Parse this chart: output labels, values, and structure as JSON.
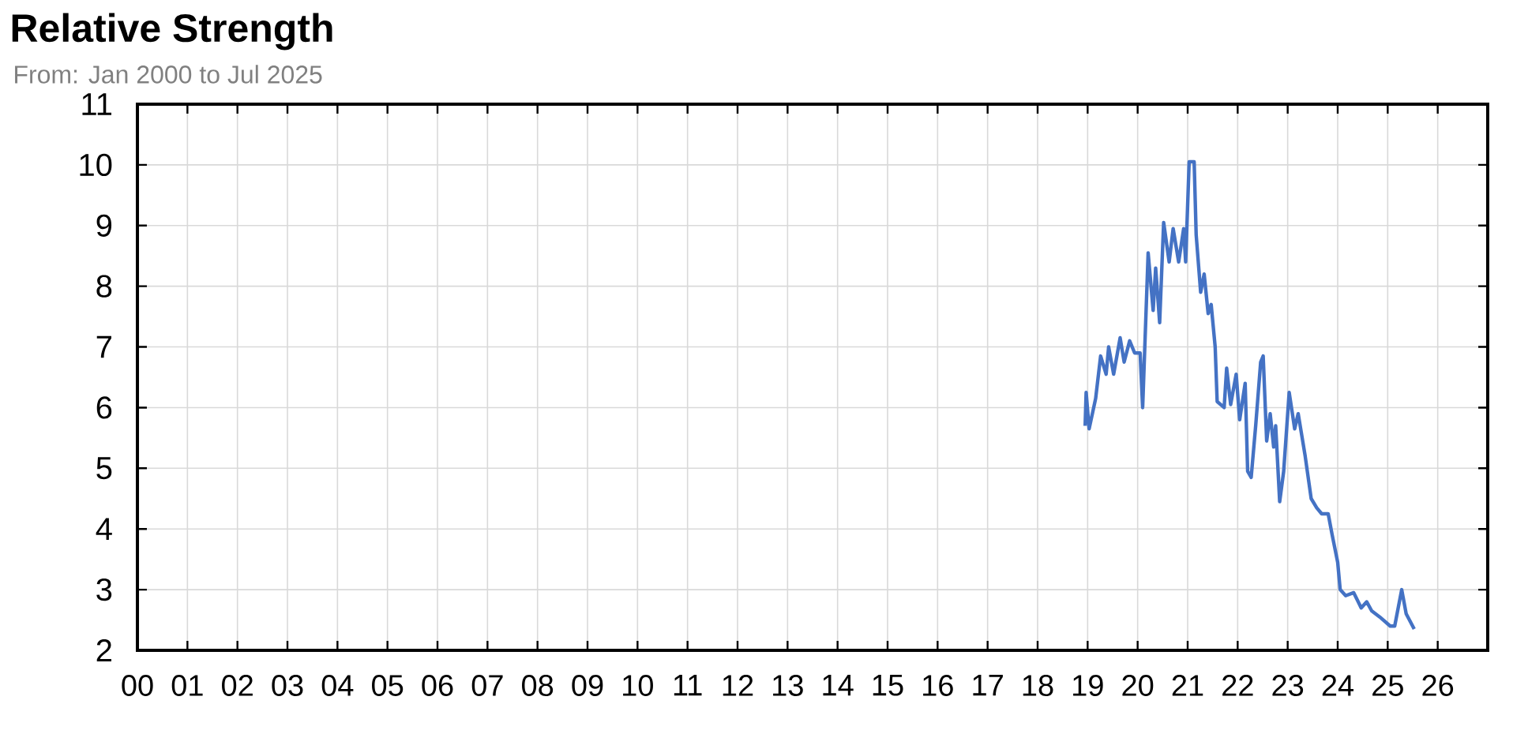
{
  "chart_data": {
    "type": "line",
    "title": "Relative Strength",
    "subtitle": "From: Jan 2000 to Jul 2025",
    "x": [
      2018.95,
      2018.97,
      2019.03,
      2019.16,
      2019.26,
      2019.37,
      2019.42,
      2019.52,
      2019.65,
      2019.73,
      2019.84,
      2019.94,
      2020.05,
      2020.1,
      2020.21,
      2020.31,
      2020.36,
      2020.44,
      2020.52,
      2020.63,
      2020.71,
      2020.82,
      2020.92,
      2020.96,
      2021.03,
      2021.13,
      2021.17,
      2021.26,
      2021.33,
      2021.41,
      2021.47,
      2021.55,
      2021.59,
      2021.73,
      2021.78,
      2021.86,
      2021.97,
      2022.04,
      2022.15,
      2022.2,
      2022.27,
      2022.36,
      2022.46,
      2022.51,
      2022.58,
      2022.65,
      2022.72,
      2022.76,
      2022.84,
      2022.92,
      2023.03,
      2023.14,
      2023.21,
      2023.35,
      2023.47,
      2023.58,
      2023.68,
      2023.81,
      2023.89,
      2024.0,
      2024.05,
      2024.16,
      2024.32,
      2024.47,
      2024.58,
      2024.68,
      2024.84,
      2025.05,
      2025.14,
      2025.28,
      2025.37,
      2025.53
    ],
    "series": [
      {
        "color": "#4472c4",
        "values": [
          5.7,
          6.25,
          5.65,
          6.15,
          6.85,
          6.55,
          7.0,
          6.55,
          7.15,
          6.75,
          7.1,
          6.9,
          6.9,
          6.0,
          8.55,
          7.6,
          8.3,
          7.4,
          9.05,
          8.4,
          8.95,
          8.4,
          8.95,
          8.4,
          10.05,
          10.05,
          8.85,
          7.9,
          8.2,
          7.55,
          7.7,
          7.0,
          6.1,
          6.0,
          6.65,
          6.05,
          6.55,
          5.8,
          6.4,
          4.95,
          4.85,
          5.7,
          6.75,
          6.85,
          5.45,
          5.9,
          5.35,
          5.7,
          4.45,
          4.95,
          6.25,
          5.65,
          5.9,
          5.2,
          4.5,
          4.35,
          4.25,
          4.25,
          3.9,
          3.45,
          3.0,
          2.9,
          2.95,
          2.7,
          2.8,
          2.65,
          2.55,
          2.4,
          2.4,
          3.0,
          2.6,
          2.35
        ]
      }
    ],
    "xlim": [
      2000,
      2027
    ],
    "xticks": [
      {
        "value": 2000,
        "label": "00"
      },
      {
        "value": 2001,
        "label": "01"
      },
      {
        "value": 2002,
        "label": "02"
      },
      {
        "value": 2003,
        "label": "03"
      },
      {
        "value": 2004,
        "label": "04"
      },
      {
        "value": 2005,
        "label": "05"
      },
      {
        "value": 2006,
        "label": "06"
      },
      {
        "value": 2007,
        "label": "07"
      },
      {
        "value": 2008,
        "label": "08"
      },
      {
        "value": 2009,
        "label": "09"
      },
      {
        "value": 2010,
        "label": "10"
      },
      {
        "value": 2011,
        "label": "11"
      },
      {
        "value": 2012,
        "label": "12"
      },
      {
        "value": 2013,
        "label": "13"
      },
      {
        "value": 2014,
        "label": "14"
      },
      {
        "value": 2015,
        "label": "15"
      },
      {
        "value": 2016,
        "label": "16"
      },
      {
        "value": 2017,
        "label": "17"
      },
      {
        "value": 2018,
        "label": "18"
      },
      {
        "value": 2019,
        "label": "19"
      },
      {
        "value": 2020,
        "label": "20"
      },
      {
        "value": 2021,
        "label": "21"
      },
      {
        "value": 2022,
        "label": "22"
      },
      {
        "value": 2023,
        "label": "23"
      },
      {
        "value": 2024,
        "label": "24"
      },
      {
        "value": 2025,
        "label": "25"
      },
      {
        "value": 2026,
        "label": "26"
      }
    ],
    "ylim": [
      2,
      11
    ],
    "yticks": [
      2,
      3,
      4,
      5,
      6,
      7,
      8,
      9,
      10,
      11
    ],
    "grid": true,
    "marker": "none",
    "line_style": "solid"
  }
}
